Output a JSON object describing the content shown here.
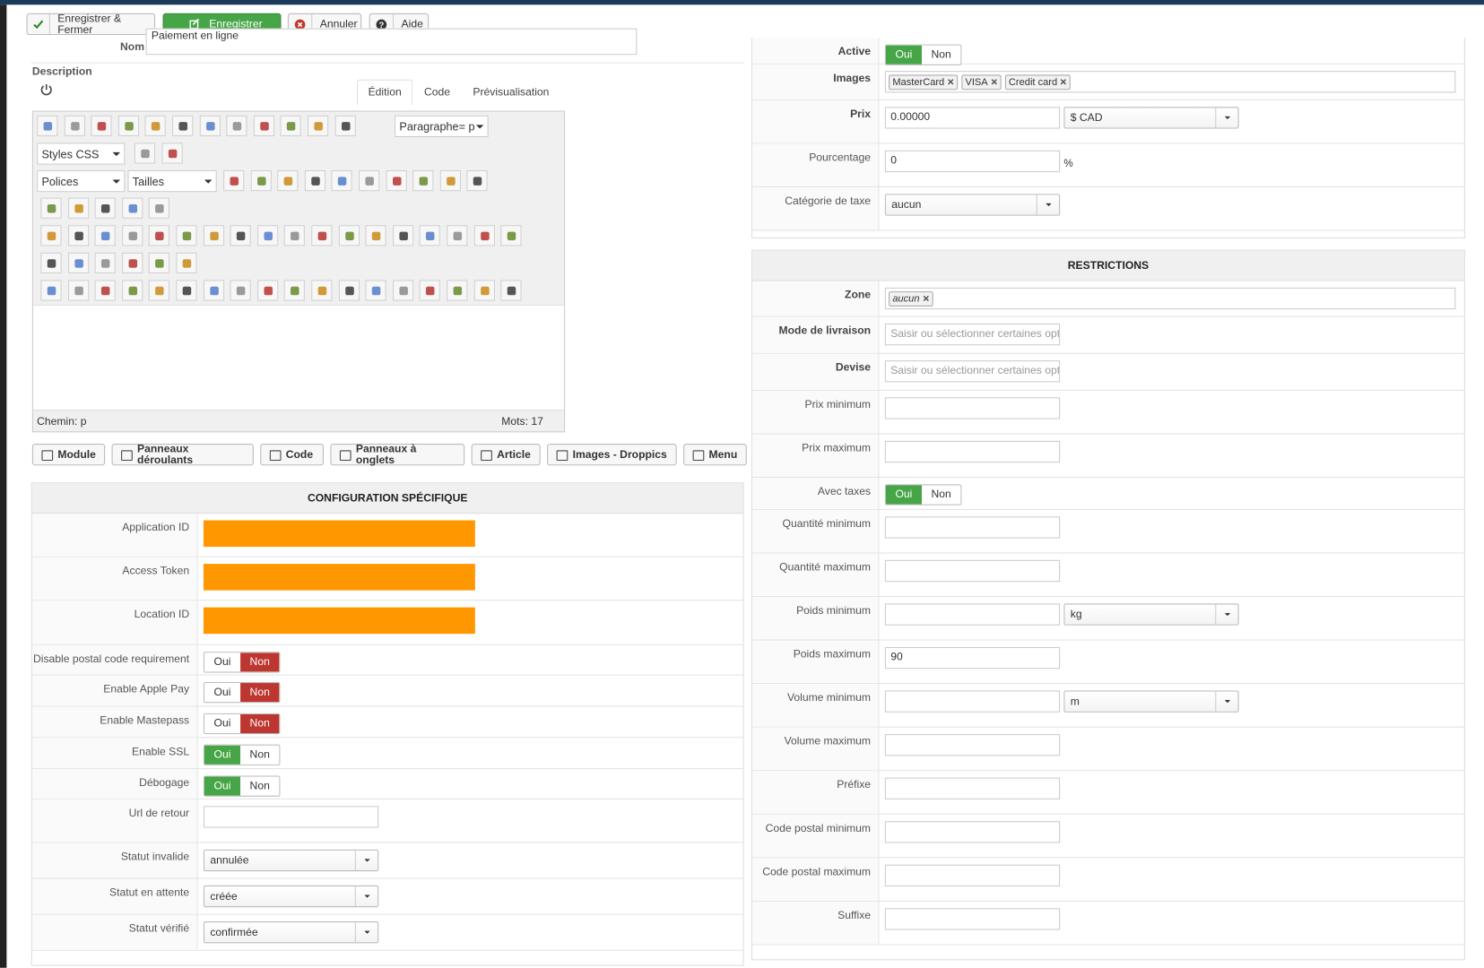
{
  "toolbar": [
    "Enregistrer & Fermer",
    "Enregistrer",
    "Annuler",
    "Aide"
  ],
  "name_field": {
    "label": "Nom",
    "value": "Paiement en ligne"
  },
  "description": {
    "label": "Description",
    "tabs": [
      "Édition",
      "Code",
      "Prévisualisation"
    ],
    "format": "Paragraphe= p",
    "styles": "Styles CSS",
    "fonts": "Polices",
    "sizes": "Tailles",
    "path": "Chemin: p",
    "words": "Mots: 17"
  },
  "plugins": [
    "Module",
    "Panneaux déroulants",
    "Code",
    "Panneaux à onglets",
    "Article",
    "Images - Droppics",
    "Menu"
  ],
  "config": {
    "title": "CONFIGURATION SPÉCIFIQUE",
    "rows": [
      {
        "label": "Application ID",
        "redacted": true
      },
      {
        "label": "Access Token",
        "redacted": true
      },
      {
        "label": "Location ID",
        "redacted": true
      },
      {
        "label": "Disable postal code requirement",
        "options": [
          "Oui",
          "Non"
        ],
        "value": "Non"
      },
      {
        "label": "Enable Apple Pay",
        "options": [
          "Oui",
          "Non"
        ],
        "value": "Non"
      },
      {
        "label": "Enable Mastepass",
        "options": [
          "Oui",
          "Non"
        ],
        "value": "Non"
      },
      {
        "label": "Enable SSL",
        "options": [
          "Oui",
          "Non"
        ],
        "value": "Oui"
      },
      {
        "label": "Débogage",
        "options": [
          "Oui",
          "Non"
        ],
        "value": "Oui"
      },
      {
        "label": "Url de retour",
        "input": null
      },
      {
        "label": "Statut invalide",
        "select": "annulée"
      },
      {
        "label": "Statut en attente",
        "select": "créée"
      },
      {
        "label": "Statut vérifié",
        "select": "confirmée"
      }
    ]
  },
  "general": {
    "rows": [
      {
        "label": "Active",
        "bold": true,
        "options": [
          "Oui",
          "Non"
        ],
        "value": "Oui"
      },
      {
        "label": "Images",
        "bold": true,
        "tags": [
          "MasterCard",
          "VISA",
          "Credit card"
        ]
      },
      {
        "label": "Prix",
        "bold": true,
        "input": "0.00000",
        "select": "$ CAD"
      },
      {
        "label": "Pourcentage",
        "input": "0",
        "suffix": "%"
      },
      {
        "label": "Catégorie de taxe",
        "select": "aucun"
      }
    ]
  },
  "restrictions": {
    "title": "RESTRICTIONS",
    "rows": [
      {
        "label": "Zone",
        "bold": true,
        "tags": [
          "aucun"
        ]
      },
      {
        "label": "Mode de livraison",
        "bold": true,
        "placeholder": "Saisir ou sélectionner certaines options"
      },
      {
        "label": "Devise",
        "bold": true,
        "placeholder": "Saisir ou sélectionner certaines options"
      },
      {
        "label": "Prix minimum",
        "input": null
      },
      {
        "label": "Prix maximum",
        "input": null
      },
      {
        "label": "Avec taxes",
        "options": [
          "Oui",
          "Non"
        ],
        "value": "Oui"
      },
      {
        "label": "Quantité minimum",
        "input": null
      },
      {
        "label": "Quantité maximum",
        "input": null
      },
      {
        "label": "Poids minimum",
        "input": null,
        "select": "kg"
      },
      {
        "label": "Poids maximum",
        "input": "90"
      },
      {
        "label": "Volume minimum",
        "input": null,
        "select": "m"
      },
      {
        "label": "Volume maximum",
        "input": null
      },
      {
        "label": "Préfixe",
        "input": null
      },
      {
        "label": "Code postal minimum",
        "input": null
      },
      {
        "label": "Code postal maximum",
        "input": null
      },
      {
        "label": "Suffixe",
        "input": null
      }
    ]
  }
}
